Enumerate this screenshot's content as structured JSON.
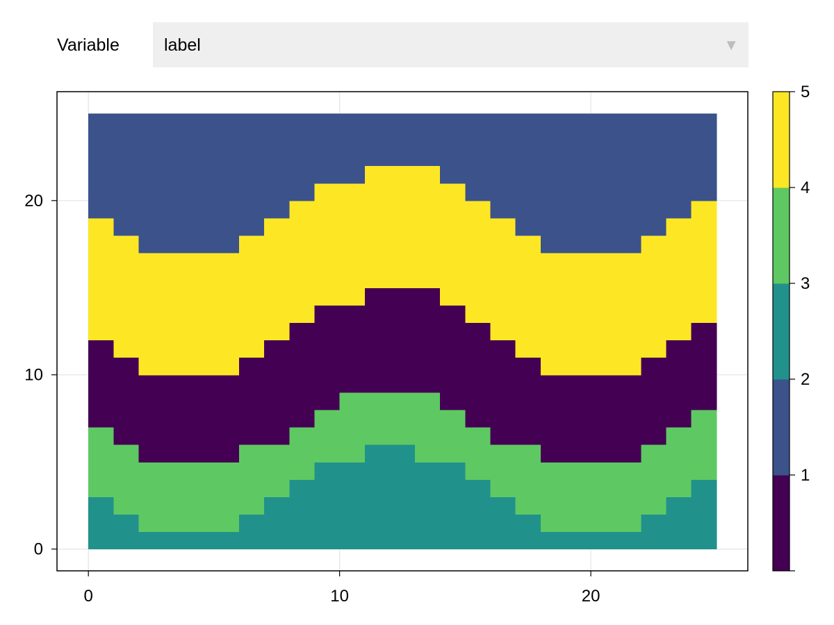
{
  "controls": {
    "variable_label": "Variable",
    "selected_variable": "label",
    "dropdown_icon": "triangle-down-icon"
  },
  "chart_data": {
    "type": "heatmap",
    "title": "",
    "xlabel": "",
    "ylabel": "",
    "x_range": [
      0,
      25
    ],
    "y_range": [
      0,
      25
    ],
    "xlim": [
      -1.25,
      26.25
    ],
    "ylim": [
      -1.25,
      26.25
    ],
    "x_ticks": [
      0,
      10,
      20
    ],
    "y_ticks": [
      0,
      10,
      20
    ],
    "grid": true,
    "levels": [
      {
        "value": 1,
        "color": "#440154"
      },
      {
        "value": 2,
        "color": "#3b528b"
      },
      {
        "value": 3,
        "color": "#21918c"
      },
      {
        "value": 4,
        "color": "#5ec962"
      },
      {
        "value": 5,
        "color": "#fde725"
      }
    ],
    "colorbar": {
      "range": [
        0,
        5
      ],
      "ticks": [
        1,
        2,
        3,
        4,
        5
      ],
      "label": ""
    },
    "band_upper_boundaries": {
      "x": [
        0,
        1,
        2,
        3,
        4,
        5,
        6,
        7,
        8,
        9,
        10,
        11,
        12,
        13,
        14,
        15,
        16,
        17,
        18,
        19,
        20,
        21,
        22,
        23,
        24
      ],
      "level3_top": [
        3,
        2,
        1,
        1,
        1,
        1,
        2,
        3,
        4,
        5,
        5,
        6,
        6,
        5,
        5,
        4,
        3,
        2,
        1,
        1,
        1,
        1,
        2,
        3,
        4
      ],
      "level4_top": [
        7,
        6,
        5,
        5,
        5,
        5,
        6,
        6,
        7,
        8,
        9,
        9,
        9,
        9,
        8,
        7,
        6,
        6,
        5,
        5,
        5,
        5,
        6,
        7,
        8
      ],
      "level1_top": [
        12,
        11,
        10,
        10,
        10,
        10,
        11,
        12,
        13,
        14,
        14,
        15,
        15,
        15,
        14,
        13,
        12,
        11,
        10,
        10,
        10,
        10,
        11,
        12,
        13
      ],
      "level5_top": [
        19,
        18,
        17,
        17,
        17,
        17,
        18,
        19,
        20,
        21,
        21,
        22,
        22,
        22,
        21,
        20,
        19,
        18,
        17,
        17,
        17,
        17,
        18,
        19,
        20
      ],
      "level2_top": [
        25,
        25,
        25,
        25,
        25,
        25,
        25,
        25,
        25,
        25,
        25,
        25,
        25,
        25,
        25,
        25,
        25,
        25,
        25,
        25,
        25,
        25,
        25,
        25,
        25
      ]
    }
  }
}
